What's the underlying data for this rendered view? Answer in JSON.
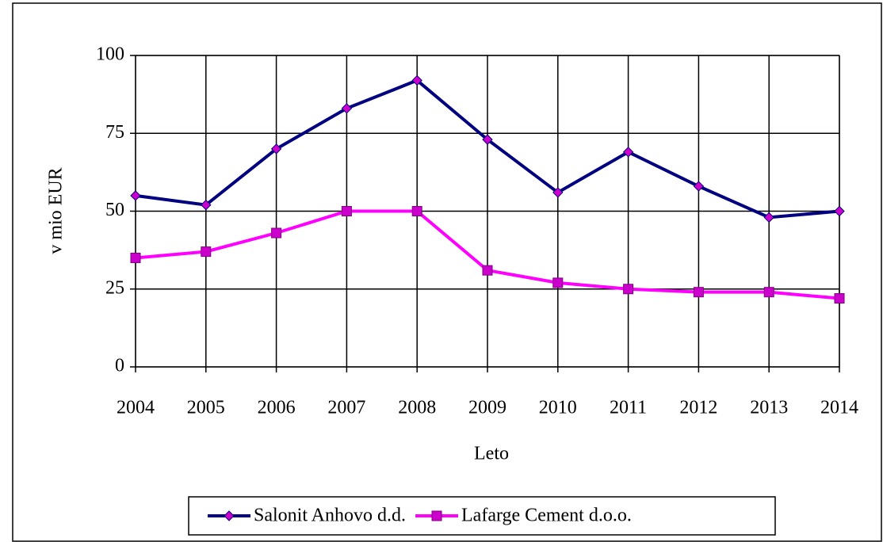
{
  "chart_data": {
    "type": "line",
    "categories": [
      "2004",
      "2005",
      "2006",
      "2007",
      "2008",
      "2009",
      "2010",
      "2011",
      "2012",
      "2013",
      "2014"
    ],
    "series": [
      {
        "name": "Salonit Anhovo d.d.",
        "color": "#000080",
        "marker": "diamond",
        "marker_color": "#cc00cc",
        "values": [
          55,
          52,
          70,
          83,
          92,
          73,
          56,
          69,
          58,
          48,
          50
        ]
      },
      {
        "name": "Lafarge Cement d.o.o.",
        "color": "#ff00ff",
        "marker": "square",
        "marker_color": "#cc00cc",
        "values": [
          35,
          37,
          43,
          50,
          50,
          31,
          27,
          25,
          24,
          24,
          22
        ]
      }
    ],
    "ylabel": "v mio EUR",
    "xlabel": "Leto",
    "ylim": [
      0,
      100
    ],
    "yticks": [
      0,
      25,
      50,
      75,
      100
    ],
    "grid": true,
    "legend": "bottom"
  }
}
